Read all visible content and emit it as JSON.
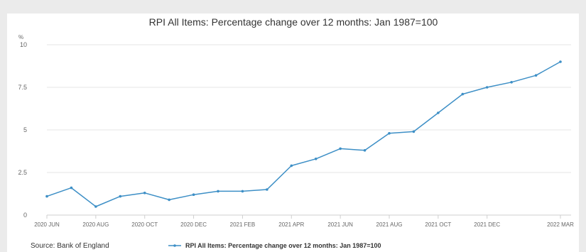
{
  "source_label": "Source: Bank of England",
  "colors": {
    "series": "#3d8fc6",
    "background": "#ebebeb",
    "panel": "#ffffff",
    "grid": "#e6e6e6"
  },
  "chart_data": {
    "type": "line",
    "title": "RPI All Items: Percentage change over 12 months: Jan 1987=100",
    "ylabel": "%",
    "xlabel": "",
    "ylim": [
      0,
      10
    ],
    "yticks": [
      0,
      2.5,
      5,
      7.5,
      10
    ],
    "ytick_labels": [
      "0",
      "2.5",
      "5",
      "7.5",
      "10"
    ],
    "grid": true,
    "legend_position": "bottom",
    "x": [
      "2020 JUN",
      "2020 JUL",
      "2020 AUG",
      "2020 SEP",
      "2020 OCT",
      "2020 NOV",
      "2020 DEC",
      "2021 JAN",
      "2021 FEB",
      "2021 MAR",
      "2021 APR",
      "2021 MAY",
      "2021 JUN",
      "2021 JUL",
      "2021 AUG",
      "2021 SEP",
      "2021 OCT",
      "2021 NOV",
      "2021 DEC",
      "2022 JAN",
      "2022 FEB",
      "2022 MAR"
    ],
    "xtick_labels": [
      "2020 JUN",
      "",
      "2020 AUG",
      "",
      "2020 OCT",
      "",
      "2020 DEC",
      "",
      "2021 FEB",
      "",
      "2021 APR",
      "",
      "2021 JUN",
      "",
      "2021 AUG",
      "",
      "2021 OCT",
      "",
      "2021 DEC",
      "",
      "",
      "2022 MAR"
    ],
    "series": [
      {
        "name": "RPI All Items: Percentage change over 12 months: Jan 1987=100",
        "values": [
          1.1,
          1.6,
          0.5,
          1.1,
          1.3,
          0.9,
          1.2,
          1.4,
          1.4,
          1.5,
          2.9,
          3.3,
          3.9,
          3.8,
          4.8,
          4.9,
          6.0,
          7.1,
          7.5,
          7.8,
          8.2,
          9.0
        ]
      }
    ]
  }
}
